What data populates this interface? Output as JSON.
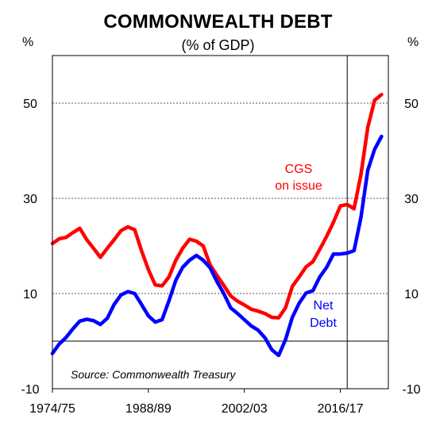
{
  "title": "COMMONWEALTH DEBT",
  "subtitle": "(% of GDP)",
  "colors": {
    "cgs": "#ff0000",
    "net_debt": "#0000ff",
    "axis": "#000000",
    "grid": "#555555"
  },
  "chart_data": {
    "type": "line",
    "title": "COMMONWEALTH DEBT",
    "subtitle": "(% of GDP)",
    "y_unit_left": "%",
    "y_unit_right": "%",
    "ylim": [
      -10,
      60
    ],
    "y_ticks": [
      50,
      30,
      10,
      -10
    ],
    "y_tick_labels": [
      "50",
      "30",
      "10",
      "-10"
    ],
    "x_start": 1974.5,
    "x_end": 2023.5,
    "x_tick_positions": [
      1974.5,
      1988.5,
      2002.5,
      2016.5
    ],
    "x_tick_labels": [
      "1974/75",
      "1988/89",
      "2002/03",
      "2016/17"
    ],
    "grid": "horizontal dotted at 50, 30, 10; solid zero line",
    "vertical_marker": 2017.5,
    "source": "Source: Commonwealth Treasury",
    "series": [
      {
        "name": "CGS on issue",
        "label_lines": [
          "CGS",
          "on issue"
        ],
        "color": "#ff0000",
        "x": [
          1974.5,
          1975.5,
          1976.5,
          1977.5,
          1978.5,
          1979.5,
          1980.5,
          1981.5,
          1982.5,
          1983.5,
          1984.5,
          1985.5,
          1986.5,
          1987.5,
          1988.5,
          1989.5,
          1990.5,
          1991.5,
          1992.5,
          1993.5,
          1994.5,
          1995.5,
          1996.5,
          1997.5,
          1998.5,
          1999.5,
          2000.5,
          2001.5,
          2002.5,
          2003.5,
          2004.5,
          2005.5,
          2006.5,
          2007.5,
          2008.5,
          2009.5,
          2010.5,
          2011.5,
          2012.5,
          2013.5,
          2014.5,
          2015.5,
          2016.5,
          2017.5,
          2018.5,
          2019.5,
          2020.5,
          2021.5,
          2022.5
        ],
        "values": [
          20.5,
          21.5,
          21.8,
          22.8,
          23.7,
          21.3,
          19.5,
          17.6,
          19.5,
          21.3,
          23.2,
          24.0,
          23.4,
          19.0,
          15.0,
          11.8,
          11.6,
          13.5,
          17.0,
          19.5,
          21.4,
          21.0,
          20.0,
          16.0,
          13.8,
          11.7,
          9.5,
          8.4,
          7.6,
          6.7,
          6.3,
          5.8,
          5.0,
          4.9,
          7.0,
          11.5,
          13.5,
          15.6,
          16.7,
          19.3,
          22.0,
          25.0,
          28.4,
          28.7,
          27.8,
          35.0,
          44.9,
          50.6,
          51.8
        ]
      },
      {
        "name": "Net Debt",
        "label_lines": [
          "Net",
          "Debt"
        ],
        "color": "#0000ff",
        "x": [
          1974.5,
          1975.5,
          1976.5,
          1977.5,
          1978.5,
          1979.5,
          1980.5,
          1981.5,
          1982.5,
          1983.5,
          1984.5,
          1985.5,
          1986.5,
          1987.5,
          1988.5,
          1989.5,
          1990.5,
          1991.5,
          1992.5,
          1993.5,
          1994.5,
          1995.5,
          1996.5,
          1997.5,
          1998.5,
          1999.5,
          2000.5,
          2001.5,
          2002.5,
          2003.5,
          2004.5,
          2005.5,
          2006.5,
          2007.5,
          2008.5,
          2009.5,
          2010.5,
          2011.5,
          2012.5,
          2013.5,
          2014.5,
          2015.5,
          2016.5,
          2017.5,
          2018.5,
          2019.5,
          2020.5,
          2021.5,
          2022.5
        ],
        "values": [
          -2.6,
          -0.6,
          0.8,
          2.6,
          4.2,
          4.6,
          4.3,
          3.5,
          4.8,
          7.7,
          9.7,
          10.4,
          10.0,
          7.7,
          5.3,
          4.0,
          4.5,
          8.5,
          12.8,
          15.5,
          17.0,
          18.0,
          17.0,
          15.4,
          12.5,
          10.0,
          7.0,
          5.8,
          4.5,
          3.2,
          2.3,
          0.7,
          -1.8,
          -3.0,
          0.3,
          5.0,
          8.0,
          10.1,
          10.6,
          13.5,
          15.5,
          18.3,
          18.3,
          18.5,
          19.0,
          26.0,
          35.9,
          40.3,
          43.0
        ]
      }
    ]
  }
}
